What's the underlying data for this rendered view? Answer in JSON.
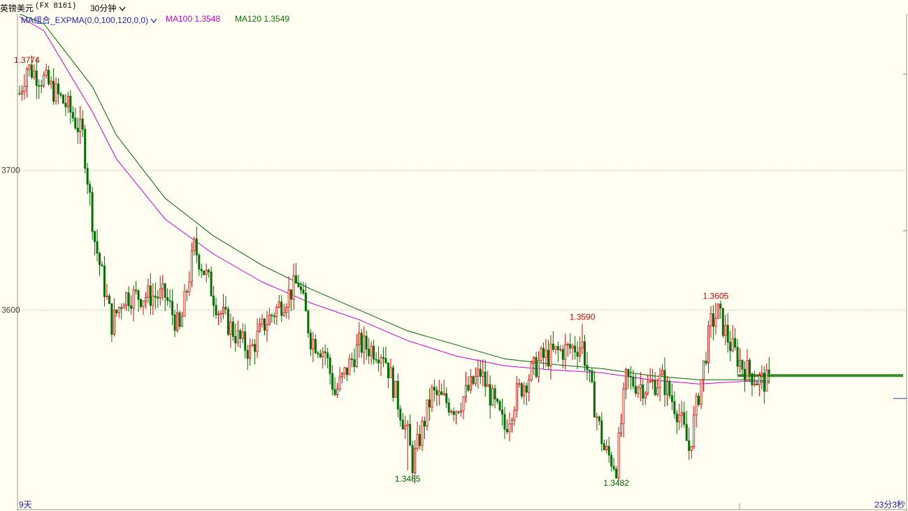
{
  "header": {
    "symbol": "英镑美元",
    "code": "(FX 8161)",
    "period": "30分钟"
  },
  "indicator": {
    "name": "MA组合_EXPMA(0,0,100,120,0,0)",
    "ma100_label": "MA100 1.3548",
    "ma120_label": "MA120 1.3549",
    "colors": {
      "name": "#1f1fb4",
      "ma100": "#d000d0",
      "ma120": "#007a00"
    }
  },
  "footer": {
    "left_label": "9天",
    "right_label": "23分3秒"
  },
  "chart_data": {
    "type": "candlestick",
    "title": "",
    "y_ticks": [
      "3700",
      "3600"
    ],
    "y_tick_values": [
      1.37,
      1.36
    ],
    "ylim": [
      1.3457,
      1.3812
    ],
    "grid": "horizontal dotted",
    "annotations": [
      {
        "text": "1.3774",
        "value": 1.3774,
        "index": 3,
        "kind": "high",
        "color": "#d00000"
      },
      {
        "text": "1.3590",
        "value": 1.359,
        "index": 232,
        "kind": "high",
        "color": "#d00000"
      },
      {
        "text": "1.3605",
        "value": 1.3605,
        "index": 287,
        "kind": "high",
        "color": "#d00000"
      },
      {
        "text": "1.3485",
        "value": 1.3485,
        "index": 160,
        "kind": "low",
        "color": "#006000"
      },
      {
        "text": "1.3482",
        "value": 1.3482,
        "index": 246,
        "kind": "low",
        "color": "#006000"
      }
    ],
    "current_price": 1.3553,
    "candle_colors": {
      "up": "#e00000",
      "down": "#007000",
      "ma100": "#d000d0",
      "ma120": "#006400"
    },
    "anchors": [
      [
        0,
        1.3755
      ],
      [
        3,
        1.3774
      ],
      [
        10,
        1.3765
      ],
      [
        20,
        1.3745
      ],
      [
        26,
        1.3725
      ],
      [
        31,
        1.365
      ],
      [
        38,
        1.359
      ],
      [
        43,
        1.361
      ],
      [
        50,
        1.361
      ],
      [
        60,
        1.361
      ],
      [
        66,
        1.3585
      ],
      [
        72,
        1.3645
      ],
      [
        78,
        1.362
      ],
      [
        82,
        1.36
      ],
      [
        90,
        1.358
      ],
      [
        95,
        1.357
      ],
      [
        101,
        1.359
      ],
      [
        108,
        1.3605
      ],
      [
        115,
        1.362
      ],
      [
        120,
        1.358
      ],
      [
        126,
        1.357
      ],
      [
        130,
        1.354
      ],
      [
        140,
        1.3575
      ],
      [
        150,
        1.357
      ],
      [
        160,
        1.351
      ],
      [
        162,
        1.349
      ],
      [
        170,
        1.354
      ],
      [
        180,
        1.353
      ],
      [
        190,
        1.3555
      ],
      [
        200,
        1.3515
      ],
      [
        205,
        1.354
      ],
      [
        215,
        1.3565
      ],
      [
        222,
        1.357
      ],
      [
        232,
        1.3575
      ],
      [
        236,
        1.354
      ],
      [
        241,
        1.35
      ],
      [
        246,
        1.3488
      ],
      [
        250,
        1.355
      ],
      [
        258,
        1.3545
      ],
      [
        265,
        1.355
      ],
      [
        272,
        1.3525
      ],
      [
        276,
        1.35
      ],
      [
        280,
        1.354
      ],
      [
        285,
        1.359
      ],
      [
        288,
        1.3598
      ],
      [
        293,
        1.3575
      ],
      [
        298,
        1.356
      ],
      [
        304,
        1.355
      ],
      [
        309,
        1.3548
      ]
    ],
    "ma100": [
      [
        0,
        1.381
      ],
      [
        10,
        1.38
      ],
      [
        30,
        1.3742
      ],
      [
        40,
        1.3708
      ],
      [
        60,
        1.3665
      ],
      [
        80,
        1.364
      ],
      [
        100,
        1.362
      ],
      [
        120,
        1.3605
      ],
      [
        140,
        1.3593
      ],
      [
        160,
        1.3578
      ],
      [
        180,
        1.3567
      ],
      [
        200,
        1.356
      ],
      [
        220,
        1.3557
      ],
      [
        240,
        1.3555
      ],
      [
        260,
        1.355
      ],
      [
        280,
        1.3547
      ],
      [
        300,
        1.3549
      ],
      [
        309,
        1.3548
      ]
    ],
    "ma120": [
      [
        0,
        1.3812
      ],
      [
        10,
        1.3805
      ],
      [
        30,
        1.376
      ],
      [
        40,
        1.3725
      ],
      [
        60,
        1.368
      ],
      [
        80,
        1.3653
      ],
      [
        100,
        1.3632
      ],
      [
        120,
        1.3615
      ],
      [
        140,
        1.36
      ],
      [
        160,
        1.3585
      ],
      [
        180,
        1.3575
      ],
      [
        200,
        1.3565
      ],
      [
        220,
        1.3561
      ],
      [
        240,
        1.3558
      ],
      [
        260,
        1.3553
      ],
      [
        280,
        1.355
      ],
      [
        300,
        1.355
      ],
      [
        309,
        1.3549
      ]
    ]
  }
}
